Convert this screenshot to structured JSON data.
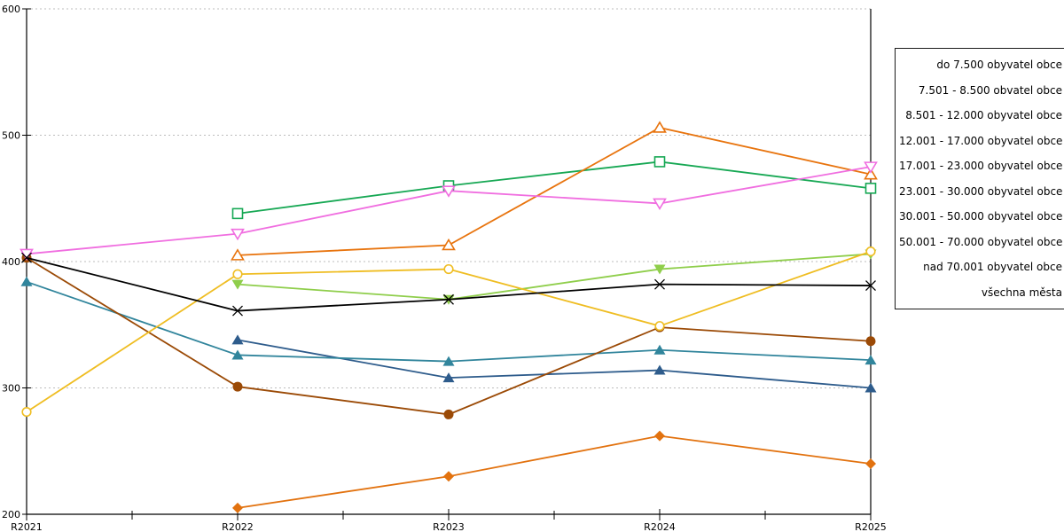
{
  "chart_data": {
    "type": "line",
    "title": "",
    "xlabel": "",
    "ylabel": "",
    "categories": [
      "R2021",
      "R2022",
      "R2023",
      "R2024",
      "R2025"
    ],
    "ylim": [
      200,
      600
    ],
    "yticks": [
      "200",
      "300",
      "400",
      "500",
      "600"
    ],
    "grid": "horizontal-dotted",
    "gridline_color": "#bdbdbd",
    "axis_color": "#000000",
    "legend_position": "right-outside",
    "series": [
      {
        "name": "do 7.500 obyvatel obce",
        "color": "#E2720F",
        "marker": "diamond-filled",
        "values": [
          null,
          205,
          230,
          262,
          240
        ]
      },
      {
        "name": "7.501 - 8.500 obvatel obce",
        "color": "#2E5C8C",
        "marker": "triangle-filled",
        "values": [
          null,
          338,
          308,
          314,
          300
        ]
      },
      {
        "name": "8.501 - 12.000 obyvatel obce",
        "color": "#31859C",
        "marker": "triangle-filled",
        "values": [
          384,
          326,
          321,
          330,
          322
        ]
      },
      {
        "name": "12.001 - 17.000 obyvatel obce",
        "color": "#9B4A06",
        "marker": "circle-filled",
        "values": [
          403,
          301,
          279,
          348,
          337
        ]
      },
      {
        "name": "17.001 - 23.000 obyvatel obce",
        "color": "#8FCE4B",
        "marker": "triangle-down-filled",
        "values": [
          null,
          382,
          370,
          394,
          406
        ]
      },
      {
        "name": "23.001 - 30.000 obyvatel obce",
        "color": "#EFBD22",
        "marker": "circle-open",
        "values": [
          281,
          390,
          394,
          349,
          408
        ]
      },
      {
        "name": "30.001 - 50.000 obyvatel obce",
        "color": "#17A854",
        "marker": "square-open",
        "values": [
          null,
          438,
          460,
          479,
          458
        ]
      },
      {
        "name": "50.001 - 70.000 obyvatel obce",
        "color": "#E8740E",
        "marker": "triangle-open",
        "values": [
          null,
          405,
          413,
          506,
          469
        ]
      },
      {
        "name": "nad 70.001 obyvatel obce",
        "color": "#F06EE0",
        "marker": "triangle-down-open",
        "values": [
          406,
          422,
          456,
          446,
          475
        ]
      },
      {
        "name": "všechna města",
        "color": "#000000",
        "marker": "x-cross",
        "values": [
          403,
          361,
          370,
          382,
          381
        ]
      }
    ]
  }
}
